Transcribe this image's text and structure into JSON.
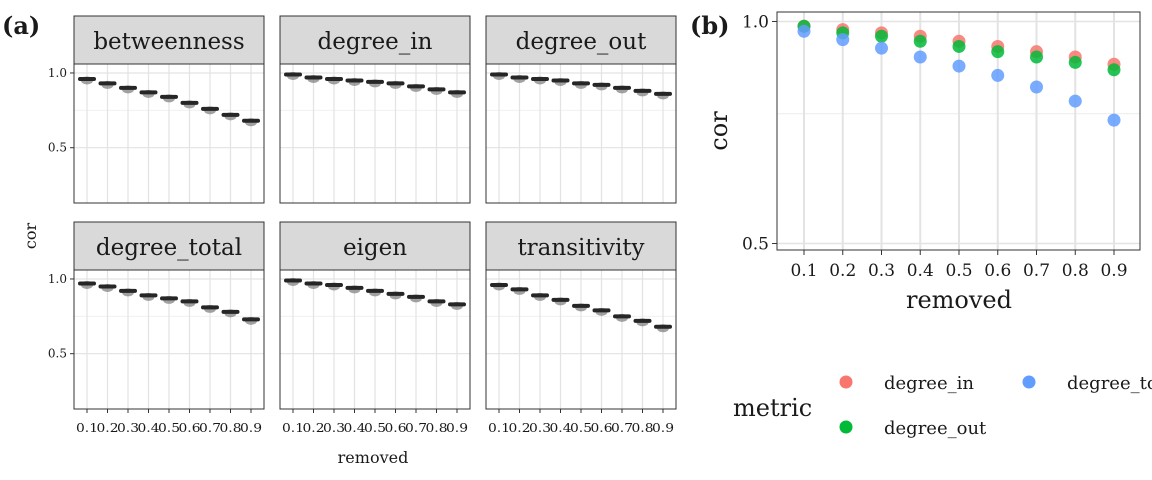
{
  "panel_labels": {
    "a": "(a)",
    "b": "(b)"
  },
  "chart_data": [
    {
      "type": "scatter",
      "panel": "(a)",
      "layout": "facet 3x2",
      "xlabel": "removed",
      "ylabel": "cor",
      "x": [
        0.1,
        0.2,
        0.3,
        0.4,
        0.5,
        0.6,
        0.7,
        0.8,
        0.9
      ],
      "x_tick_labels": [
        "0.1",
        "0.2",
        "0.3",
        "0.4",
        "0.5",
        "0.6",
        "0.7",
        "0.8",
        "0.9"
      ],
      "ylim": [
        0.13,
        1.06
      ],
      "y_ticks": [
        0.5,
        1.0
      ],
      "y_tick_labels": [
        "0.5",
        "1.0"
      ],
      "grid": true,
      "facets": [
        {
          "name": "betweenness",
          "values": [
            0.96,
            0.93,
            0.9,
            0.87,
            0.84,
            0.8,
            0.76,
            0.72,
            0.68
          ]
        },
        {
          "name": "degree_in",
          "values": [
            0.99,
            0.97,
            0.96,
            0.95,
            0.94,
            0.93,
            0.91,
            0.89,
            0.87
          ]
        },
        {
          "name": "degree_out",
          "values": [
            0.99,
            0.97,
            0.96,
            0.95,
            0.93,
            0.92,
            0.9,
            0.88,
            0.86
          ]
        },
        {
          "name": "degree_total",
          "values": [
            0.97,
            0.95,
            0.92,
            0.89,
            0.87,
            0.85,
            0.81,
            0.78,
            0.73
          ]
        },
        {
          "name": "eigen",
          "values": [
            0.99,
            0.97,
            0.96,
            0.94,
            0.92,
            0.9,
            0.88,
            0.85,
            0.83
          ]
        },
        {
          "name": "transitivity",
          "values": [
            0.96,
            0.93,
            0.89,
            0.86,
            0.82,
            0.79,
            0.75,
            0.72,
            0.68
          ]
        }
      ]
    },
    {
      "type": "scatter",
      "panel": "(b)",
      "xlabel": "removed",
      "ylabel": "cor",
      "x": [
        0.1,
        0.2,
        0.3,
        0.4,
        0.5,
        0.6,
        0.7,
        0.8,
        0.9
      ],
      "x_tick_labels": [
        "0.1",
        "0.2",
        "0.3",
        "0.4",
        "0.5",
        "0.6",
        "0.7",
        "0.8",
        "0.9"
      ],
      "y_scale": "log",
      "ylim": [
        0.49,
        1.03
      ],
      "y_ticks": [
        0.5,
        1.0
      ],
      "y_tick_labels": [
        "0.5",
        "1.0"
      ],
      "grid": true,
      "legend": {
        "title": "metric",
        "position": "bottom"
      },
      "series": [
        {
          "name": "degree_in",
          "color": "#F8766D",
          "values": [
            0.985,
            0.975,
            0.965,
            0.955,
            0.94,
            0.925,
            0.91,
            0.895,
            0.875
          ]
        },
        {
          "name": "degree_out",
          "color": "#00BA38",
          "values": [
            0.985,
            0.965,
            0.955,
            0.94,
            0.925,
            0.91,
            0.895,
            0.88,
            0.86
          ]
        },
        {
          "name": "degree_total",
          "color": "#619CFF",
          "values": [
            0.97,
            0.945,
            0.92,
            0.895,
            0.87,
            0.845,
            0.815,
            0.78,
            0.735
          ]
        }
      ]
    }
  ]
}
